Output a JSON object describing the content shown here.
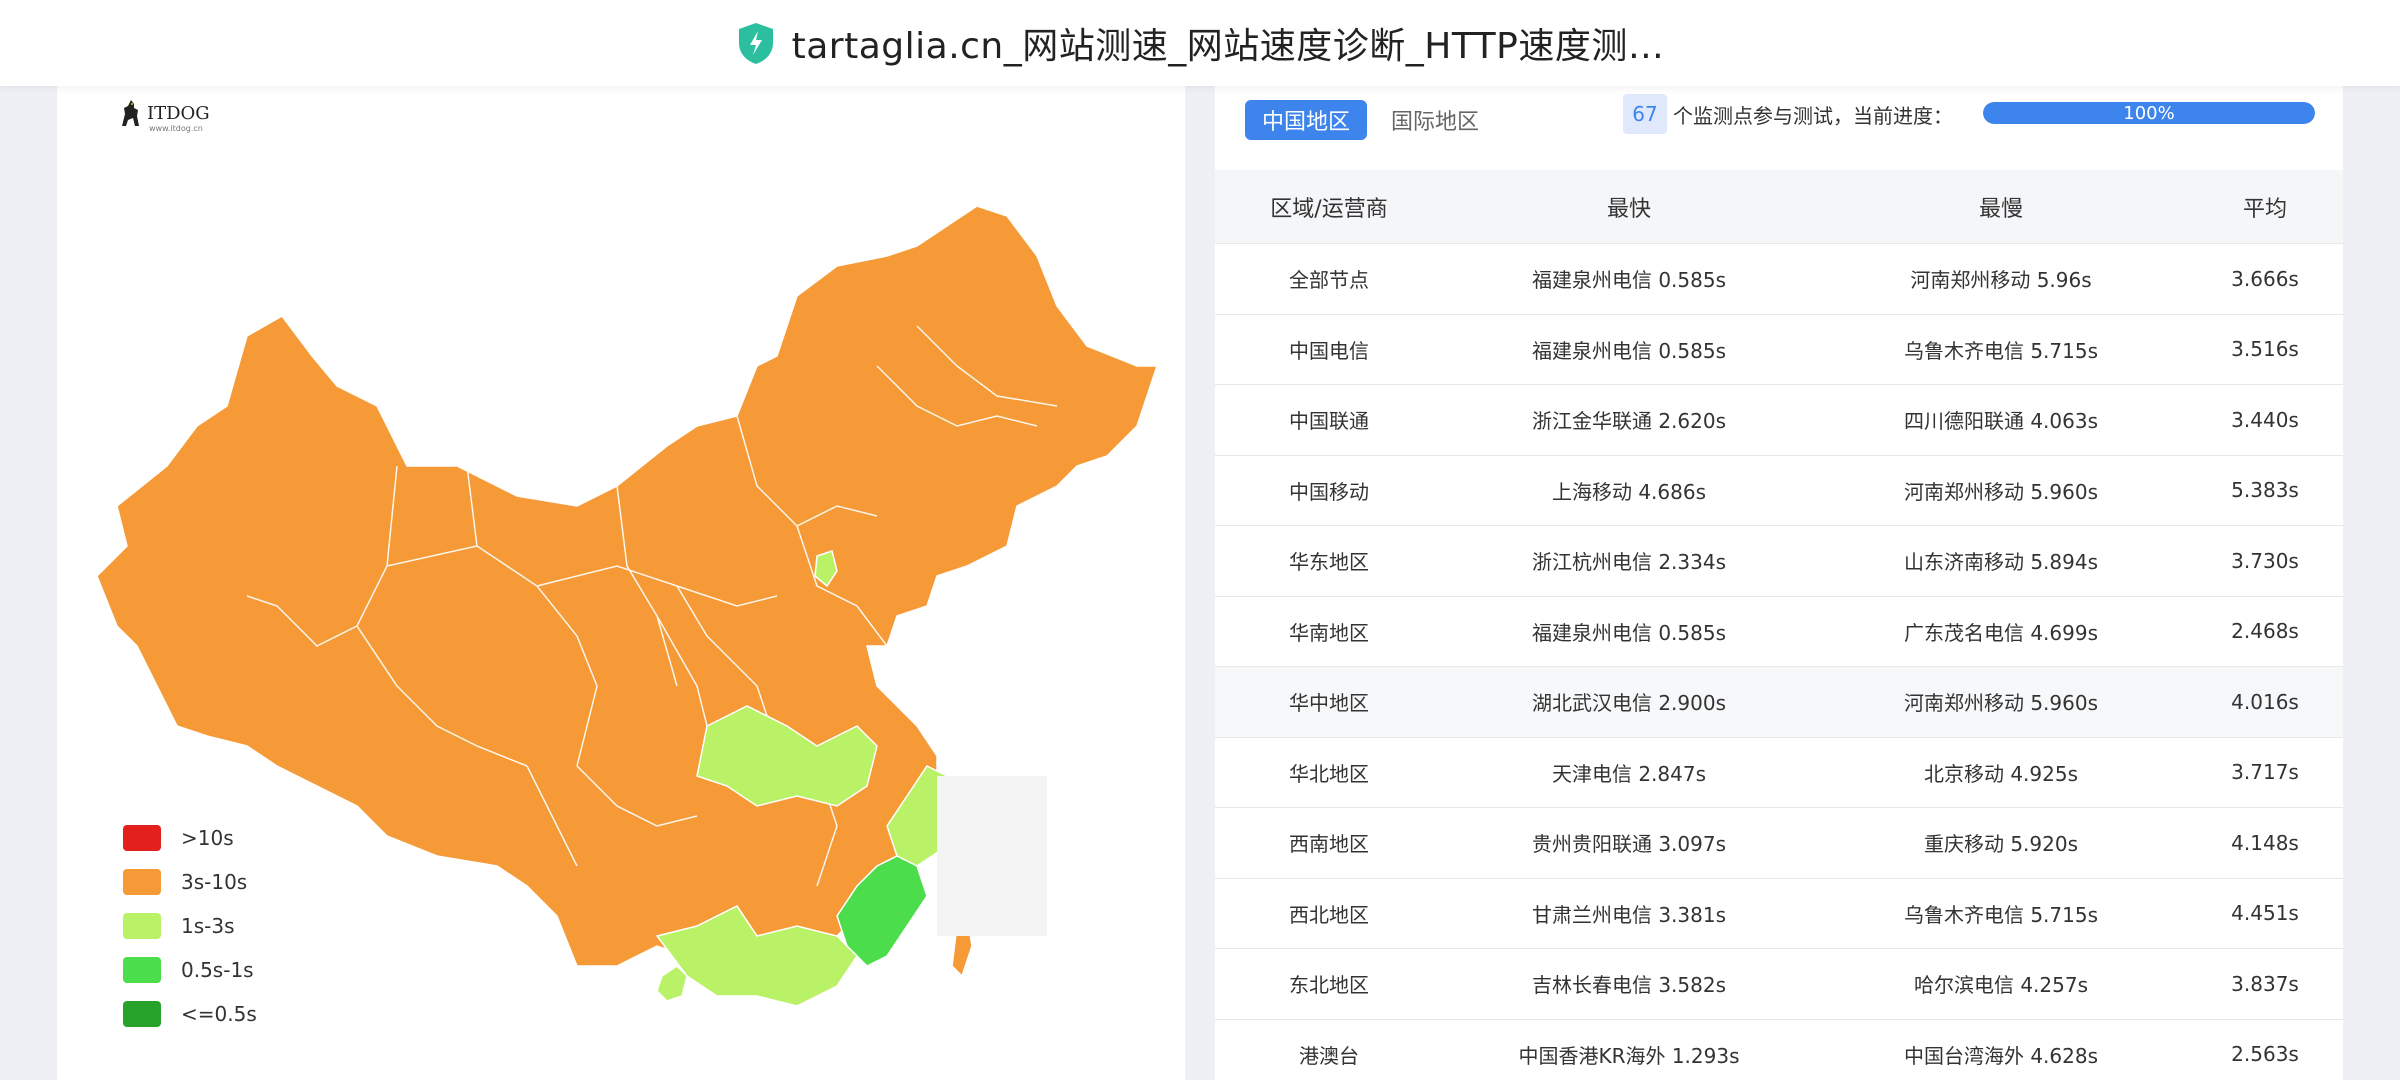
{
  "header": {
    "title": "tartaglia.cn_网站测速_网站速度诊断_HTTP速度测…"
  },
  "logo": {
    "text": "ITDOG",
    "sub": "www.itdog.cn"
  },
  "legend": [
    {
      "label": ">10s",
      "color": "#e3201d"
    },
    {
      "label": "3s-10s",
      "color": "#f59a36"
    },
    {
      "label": "1s-3s",
      "color": "#b9f167"
    },
    {
      "label": "0.5s-1s",
      "color": "#4bdd4b"
    },
    {
      "label": "<=0.5s",
      "color": "#27a32b"
    }
  ],
  "panel": {
    "tab_active": "中国地区",
    "tab_inactive": "国际地区",
    "count": "67",
    "count_text": "个监测点参与测试，当前进度：",
    "progress_label": "100%",
    "progress": 1.0,
    "accent": "#3d84ec"
  },
  "table": {
    "headers": [
      "区域/运营商",
      "最快",
      "最慢",
      "平均"
    ],
    "rows": [
      [
        "全部节点",
        "福建泉州电信 0.585s",
        "河南郑州移动 5.96s",
        "3.666s"
      ],
      [
        "中国电信",
        "福建泉州电信 0.585s",
        "乌鲁木齐电信 5.715s",
        "3.516s"
      ],
      [
        "中国联通",
        "浙江金华联通 2.620s",
        "四川德阳联通 4.063s",
        "3.440s"
      ],
      [
        "中国移动",
        "上海移动 4.686s",
        "河南郑州移动 5.960s",
        "5.383s"
      ],
      [
        "华东地区",
        "浙江杭州电信 2.334s",
        "山东济南移动 5.894s",
        "3.730s"
      ],
      [
        "华南地区",
        "福建泉州电信 0.585s",
        "广东茂名电信 4.699s",
        "2.468s"
      ],
      [
        "华中地区",
        "湖北武汉电信 2.900s",
        "河南郑州移动 5.960s",
        "4.016s"
      ],
      [
        "华北地区",
        "天津电信 2.847s",
        "北京移动 4.925s",
        "3.717s"
      ],
      [
        "西南地区",
        "贵州贵阳联通 3.097s",
        "重庆移动 5.920s",
        "4.148s"
      ],
      [
        "西北地区",
        "甘肃兰州电信 3.381s",
        "乌鲁木齐电信 5.715s",
        "4.451s"
      ],
      [
        "东北地区",
        "吉林长春电信 3.582s",
        "哈尔滨电信 4.257s",
        "3.837s"
      ],
      [
        "港澳台",
        "中国香港KR海外 1.293s",
        "中国台湾海外 4.628s",
        "2.563s"
      ]
    ]
  }
}
